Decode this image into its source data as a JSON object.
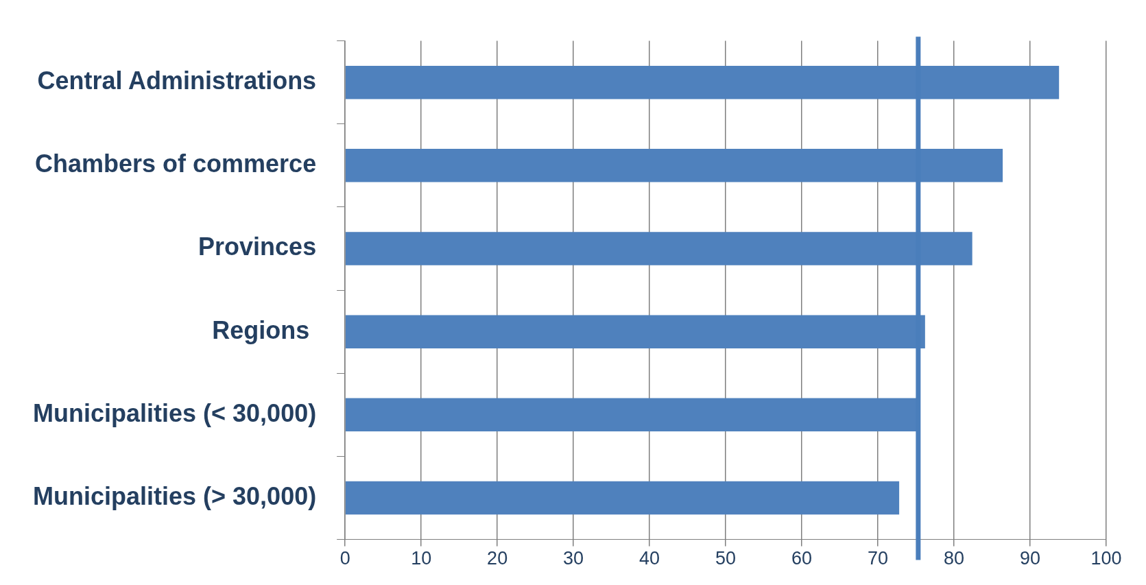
{
  "chart_data": {
    "type": "bar",
    "orientation": "horizontal",
    "categories": [
      "Central Administrations",
      "Chambers of commerce",
      "Provinces",
      "Regions ",
      "Municipalities (< 30,000)",
      "Municipalities (> 30,000)"
    ],
    "values": [
      93.8,
      86.4,
      82.4,
      76.2,
      75.5,
      72.8
    ],
    "color": "#4f81bd",
    "xlim": [
      0,
      100
    ],
    "xticks": [
      0,
      10,
      20,
      30,
      40,
      50,
      60,
      70,
      80,
      90,
      100
    ],
    "grid": "x",
    "ref_lines": [
      {
        "axis": "x",
        "value": 75.3,
        "color": "#4a7ebb"
      }
    ]
  }
}
